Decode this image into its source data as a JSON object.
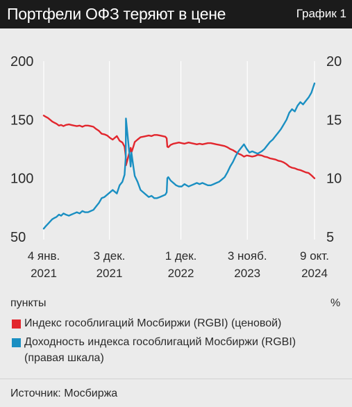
{
  "header": {
    "label": "График 1"
  },
  "colors": {
    "header_bg": "#1b1b1b",
    "background": "#ebebeb",
    "price": "#e2262d",
    "yield": "#1a8fc2",
    "grid": "#ffffff"
  },
  "chart_data": {
    "type": "line",
    "title": "Портфели ОФЗ теряют в цене",
    "xlabel": "",
    "ylabel": "пункты",
    "y2label": "%",
    "x_range": [
      "2021-01-04",
      "2024-10-09"
    ],
    "x_ticks": [
      {
        "date": "2021-01-04",
        "label": [
          "4 янв.",
          "2021"
        ]
      },
      {
        "date": "2021-12-03",
        "label": [
          "3 дек.",
          "2021"
        ]
      },
      {
        "date": "2022-12-01",
        "label": [
          "1 дек.",
          "2022"
        ]
      },
      {
        "date": "2023-11-03",
        "label": [
          "3 нояб.",
          "2023"
        ]
      },
      {
        "date": "2024-10-09",
        "label": [
          "9 окт.",
          "2024"
        ]
      }
    ],
    "ylim": [
      50,
      200
    ],
    "yticks": [
      50,
      100,
      150,
      200
    ],
    "y2lim": [
      5,
      20
    ],
    "y2ticks": [
      5,
      10,
      15,
      20
    ],
    "grid": {
      "x": true,
      "y": false
    },
    "legend": "bottom",
    "series": [
      {
        "name": "Индекс гособлигаций Мосбиржи (RGBI) (ценовой)",
        "axis": "left",
        "color": "#e2262d",
        "points": [
          [
            "2021-01-04",
            153.5
          ],
          [
            "2021-01-14",
            152.5
          ],
          [
            "2021-01-25",
            151.5
          ],
          [
            "2021-02-05",
            150.0
          ],
          [
            "2021-02-16",
            148.5
          ],
          [
            "2021-02-26",
            147.5
          ],
          [
            "2021-03-10",
            146.5
          ],
          [
            "2021-03-22",
            145.0
          ],
          [
            "2021-04-02",
            145.5
          ],
          [
            "2021-04-14",
            144.5
          ],
          [
            "2021-04-26",
            145.5
          ],
          [
            "2021-05-12",
            146.0
          ],
          [
            "2021-05-24",
            145.5
          ],
          [
            "2021-06-07",
            145.0
          ],
          [
            "2021-06-21",
            144.5
          ],
          [
            "2021-07-05",
            145.0
          ],
          [
            "2021-07-19",
            144.0
          ],
          [
            "2021-08-02",
            145.0
          ],
          [
            "2021-08-16",
            145.0
          ],
          [
            "2021-08-30",
            144.5
          ],
          [
            "2021-09-13",
            144.0
          ],
          [
            "2021-09-27",
            142.0
          ],
          [
            "2021-10-11",
            140.5
          ],
          [
            "2021-10-25",
            138.0
          ],
          [
            "2021-11-08",
            137.5
          ],
          [
            "2021-11-22",
            136.5
          ],
          [
            "2021-12-06",
            134.5
          ],
          [
            "2021-12-20",
            133.0
          ],
          [
            "2022-01-10",
            136.0
          ],
          [
            "2022-01-24",
            132.0
          ],
          [
            "2022-02-07",
            130.5
          ],
          [
            "2022-02-18",
            127.0
          ],
          [
            "2022-02-24",
            119.0
          ],
          [
            "2022-02-25",
            111.0
          ],
          [
            "2022-03-21",
            126.0
          ],
          [
            "2022-03-25",
            122.0
          ],
          [
            "2022-04-04",
            127.0
          ],
          [
            "2022-04-11",
            131.0
          ],
          [
            "2022-04-25",
            133.0
          ],
          [
            "2022-05-10",
            135.0
          ],
          [
            "2022-05-24",
            135.5
          ],
          [
            "2022-06-07",
            136.0
          ],
          [
            "2022-06-21",
            136.5
          ],
          [
            "2022-07-05",
            136.0
          ],
          [
            "2022-07-19",
            137.0
          ],
          [
            "2022-08-02",
            137.0
          ],
          [
            "2022-08-16",
            136.5
          ],
          [
            "2022-08-30",
            136.0
          ],
          [
            "2022-09-13",
            135.5
          ],
          [
            "2022-09-20",
            134.0
          ],
          [
            "2022-09-23",
            127.0
          ],
          [
            "2022-09-28",
            126.5
          ],
          [
            "2022-10-10",
            128.5
          ],
          [
            "2022-10-24",
            129.5
          ],
          [
            "2022-11-07",
            130.0
          ],
          [
            "2022-11-21",
            130.5
          ],
          [
            "2022-12-05",
            130.0
          ],
          [
            "2022-12-19",
            129.5
          ],
          [
            "2023-01-09",
            130.5
          ],
          [
            "2023-01-23",
            130.0
          ],
          [
            "2023-02-06",
            129.5
          ],
          [
            "2023-02-20",
            129.0
          ],
          [
            "2023-03-06",
            129.5
          ],
          [
            "2023-03-20",
            129.0
          ],
          [
            "2023-04-03",
            129.5
          ],
          [
            "2023-04-17",
            130.0
          ],
          [
            "2023-05-02",
            130.0
          ],
          [
            "2023-05-16",
            129.5
          ],
          [
            "2023-05-30",
            129.0
          ],
          [
            "2023-06-13",
            128.5
          ],
          [
            "2023-06-27",
            128.0
          ],
          [
            "2023-07-11",
            127.5
          ],
          [
            "2023-07-25",
            126.5
          ],
          [
            "2023-08-08",
            125.0
          ],
          [
            "2023-08-22",
            124.0
          ],
          [
            "2023-09-05",
            122.5
          ],
          [
            "2023-09-19",
            121.0
          ],
          [
            "2023-10-03",
            120.0
          ],
          [
            "2023-10-17",
            118.5
          ],
          [
            "2023-10-31",
            119.5
          ],
          [
            "2023-11-14",
            119.0
          ],
          [
            "2023-11-28",
            118.5
          ],
          [
            "2023-12-12",
            119.0
          ],
          [
            "2023-12-26",
            120.0
          ],
          [
            "2024-01-15",
            119.5
          ],
          [
            "2024-01-29",
            118.5
          ],
          [
            "2024-02-12",
            118.0
          ],
          [
            "2024-02-26",
            117.0
          ],
          [
            "2024-03-11",
            116.5
          ],
          [
            "2024-03-25",
            116.0
          ],
          [
            "2024-04-08",
            115.0
          ],
          [
            "2024-04-22",
            114.5
          ],
          [
            "2024-05-06",
            113.5
          ],
          [
            "2024-05-20",
            112.0
          ],
          [
            "2024-06-03",
            110.0
          ],
          [
            "2024-06-17",
            109.0
          ],
          [
            "2024-07-01",
            108.5
          ],
          [
            "2024-07-15",
            107.5
          ],
          [
            "2024-07-29",
            107.0
          ],
          [
            "2024-08-12",
            106.0
          ],
          [
            "2024-08-26",
            105.0
          ],
          [
            "2024-09-09",
            104.5
          ],
          [
            "2024-09-23",
            102.5
          ],
          [
            "2024-10-09",
            100.0
          ]
        ]
      },
      {
        "name": "Доходность индекса гособлигаций Мосбиржи (RGBI)",
        "note": "(правая шкала)",
        "axis": "right",
        "color": "#1a8fc2",
        "points": [
          [
            "2021-01-04",
            5.7
          ],
          [
            "2021-01-14",
            5.9
          ],
          [
            "2021-01-25",
            6.1
          ],
          [
            "2021-02-05",
            6.3
          ],
          [
            "2021-02-16",
            6.5
          ],
          [
            "2021-02-26",
            6.6
          ],
          [
            "2021-03-10",
            6.7
          ],
          [
            "2021-03-22",
            6.9
          ],
          [
            "2021-04-02",
            6.8
          ],
          [
            "2021-04-14",
            7.0
          ],
          [
            "2021-04-26",
            6.9
          ],
          [
            "2021-05-12",
            6.8
          ],
          [
            "2021-05-24",
            6.9
          ],
          [
            "2021-06-07",
            7.0
          ],
          [
            "2021-06-21",
            7.1
          ],
          [
            "2021-07-05",
            7.0
          ],
          [
            "2021-07-19",
            7.2
          ],
          [
            "2021-08-02",
            7.1
          ],
          [
            "2021-08-16",
            7.1
          ],
          [
            "2021-08-30",
            7.2
          ],
          [
            "2021-09-13",
            7.3
          ],
          [
            "2021-09-27",
            7.6
          ],
          [
            "2021-10-11",
            7.9
          ],
          [
            "2021-10-25",
            8.3
          ],
          [
            "2021-11-08",
            8.4
          ],
          [
            "2021-11-22",
            8.6
          ],
          [
            "2021-12-06",
            8.8
          ],
          [
            "2021-12-20",
            9.0
          ],
          [
            "2022-01-10",
            8.7
          ],
          [
            "2022-01-24",
            9.4
          ],
          [
            "2022-02-07",
            9.7
          ],
          [
            "2022-02-18",
            10.3
          ],
          [
            "2022-02-24",
            11.8
          ],
          [
            "2022-02-25",
            15.1
          ],
          [
            "2022-03-21",
            11.0
          ],
          [
            "2022-03-25",
            12.2
          ],
          [
            "2022-04-04",
            11.0
          ],
          [
            "2022-04-11",
            10.2
          ],
          [
            "2022-04-25",
            9.7
          ],
          [
            "2022-05-10",
            9.0
          ],
          [
            "2022-05-24",
            8.8
          ],
          [
            "2022-06-07",
            8.6
          ],
          [
            "2022-06-21",
            8.4
          ],
          [
            "2022-07-05",
            8.5
          ],
          [
            "2022-07-19",
            8.3
          ],
          [
            "2022-08-02",
            8.3
          ],
          [
            "2022-08-16",
            8.4
          ],
          [
            "2022-08-30",
            8.5
          ],
          [
            "2022-09-13",
            8.6
          ],
          [
            "2022-09-20",
            8.8
          ],
          [
            "2022-09-23",
            10.0
          ],
          [
            "2022-09-28",
            10.1
          ],
          [
            "2022-10-10",
            9.8
          ],
          [
            "2022-10-24",
            9.6
          ],
          [
            "2022-11-07",
            9.4
          ],
          [
            "2022-11-21",
            9.3
          ],
          [
            "2022-12-05",
            9.3
          ],
          [
            "2022-12-19",
            9.5
          ],
          [
            "2023-01-09",
            9.3
          ],
          [
            "2023-01-23",
            9.4
          ],
          [
            "2023-02-06",
            9.5
          ],
          [
            "2023-02-20",
            9.6
          ],
          [
            "2023-03-06",
            9.5
          ],
          [
            "2023-03-20",
            9.6
          ],
          [
            "2023-04-03",
            9.5
          ],
          [
            "2023-04-17",
            9.4
          ],
          [
            "2023-05-02",
            9.4
          ],
          [
            "2023-05-16",
            9.5
          ],
          [
            "2023-05-30",
            9.6
          ],
          [
            "2023-06-13",
            9.7
          ],
          [
            "2023-06-27",
            9.9
          ],
          [
            "2023-07-11",
            10.1
          ],
          [
            "2023-07-25",
            10.5
          ],
          [
            "2023-08-08",
            11.0
          ],
          [
            "2023-08-22",
            11.4
          ],
          [
            "2023-09-05",
            11.9
          ],
          [
            "2023-09-19",
            12.3
          ],
          [
            "2023-10-03",
            12.6
          ],
          [
            "2023-10-17",
            12.9
          ],
          [
            "2023-10-31",
            12.5
          ],
          [
            "2023-11-14",
            12.2
          ],
          [
            "2023-11-28",
            12.3
          ],
          [
            "2023-12-12",
            12.2
          ],
          [
            "2023-12-26",
            12.1
          ],
          [
            "2024-01-15",
            12.3
          ],
          [
            "2024-01-29",
            12.5
          ],
          [
            "2024-02-12",
            12.8
          ],
          [
            "2024-02-26",
            13.1
          ],
          [
            "2024-03-11",
            13.3
          ],
          [
            "2024-03-25",
            13.6
          ],
          [
            "2024-04-08",
            13.9
          ],
          [
            "2024-04-22",
            14.2
          ],
          [
            "2024-05-06",
            14.6
          ],
          [
            "2024-05-20",
            15.0
          ],
          [
            "2024-06-03",
            15.6
          ],
          [
            "2024-06-17",
            15.9
          ],
          [
            "2024-07-01",
            15.7
          ],
          [
            "2024-07-15",
            16.2
          ],
          [
            "2024-07-29",
            16.5
          ],
          [
            "2024-08-12",
            16.3
          ],
          [
            "2024-08-26",
            16.6
          ],
          [
            "2024-09-09",
            16.9
          ],
          [
            "2024-09-23",
            17.3
          ],
          [
            "2024-10-09",
            18.1
          ]
        ]
      }
    ]
  },
  "source": "Источник: Мосбиржа"
}
